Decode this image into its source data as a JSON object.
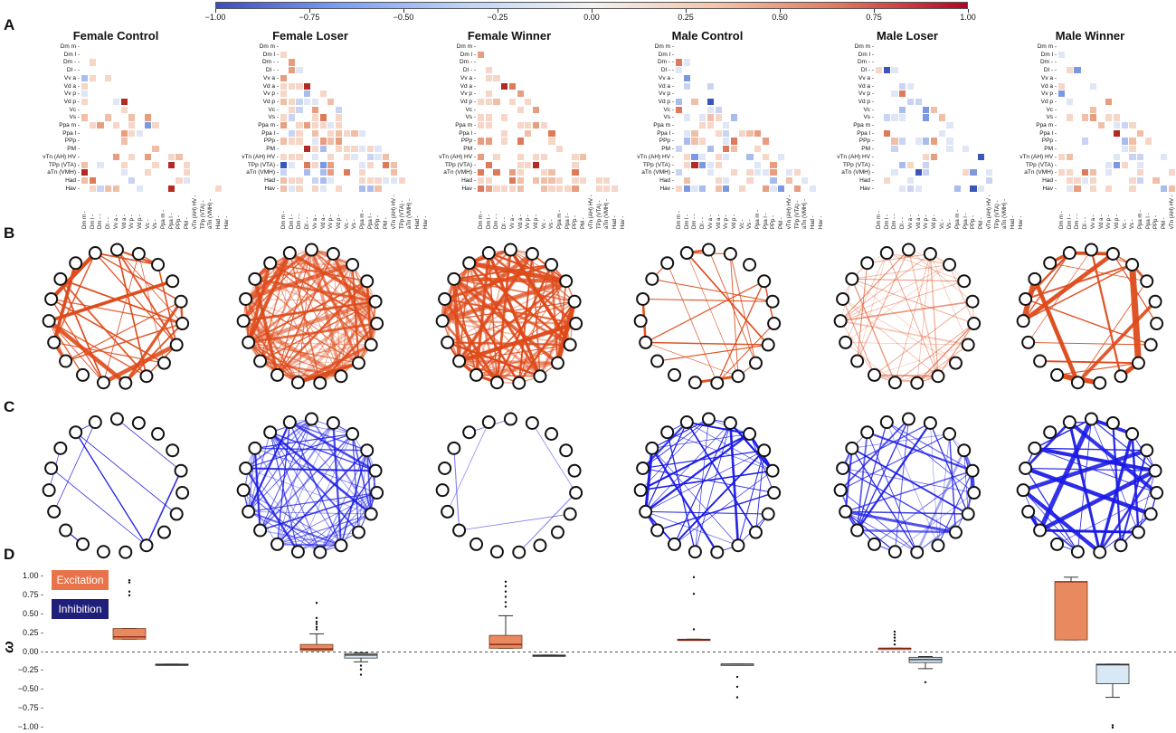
{
  "panel_letters": {
    "a": "A",
    "b": "B",
    "c": "C",
    "d": "D"
  },
  "colorbar": {
    "ticks": [
      "−1.00",
      "−0.75",
      "−0.50",
      "−0.25",
      "0.00",
      "0.25",
      "0.50",
      "0.75",
      "1.00"
    ],
    "colors": [
      "#3b4cc0",
      "#7b9ff9",
      "#c0d4f5",
      "#f2f2f2",
      "#f4c4a8",
      "#e0755c",
      "#b40426"
    ]
  },
  "groups": [
    {
      "name": "Female Control"
    },
    {
      "name": "Female Loser"
    },
    {
      "name": "Female Winner"
    },
    {
      "name": "Male Control"
    },
    {
      "name": "Male Loser"
    },
    {
      "name": "Male Winner"
    }
  ],
  "regions": [
    "Dm  m",
    "Dm  l",
    "Dm -",
    "Dl -",
    "Vv a",
    "Vd a",
    "Vv p",
    "Vd p",
    "Vc",
    "Vs",
    "Ppa m",
    "Ppa l",
    "PPp",
    "PM",
    "vTn (AH) HV",
    "TPp (VTA)",
    "aTn (VMH)",
    "Had",
    "Hav"
  ],
  "col_regions": [
    "Dm  m",
    "Dm  l",
    "Dm -",
    "Dl -",
    "Vv a",
    "Vd a",
    "Vv p",
    "Vd p",
    "Vc",
    "Vs",
    "Ppa m",
    "Ppa l",
    "PPp",
    "PM",
    "vTn (AH) HV",
    "TPp (VTA)",
    "aTn (VMH)",
    "Had",
    "Hav"
  ],
  "legend": {
    "excitation": "Excitation",
    "inhibition": "Inhibition",
    "exc_color": "#e8734a",
    "inh_color": "#1f1f7a"
  },
  "network_colors": {
    "excitation": "#de4a1a",
    "inhibition": "#1a1ae6"
  },
  "chart_data": {
    "type": "box",
    "title": "",
    "ylabel": "ω",
    "ylim": [
      -1.0,
      1.0
    ],
    "yticks": [
      "1.00",
      "0.75",
      "0.50",
      "0.25",
      "0.00",
      "−0.25",
      "−0.50",
      "−0.75",
      "−1.00"
    ],
    "series": [
      {
        "name": "Excitation",
        "values": [
          {
            "group": "Female Control",
            "min": 0.17,
            "q1": 0.17,
            "median": 0.2,
            "q3": 0.31,
            "max": 0.31,
            "outliers": [
              0.75,
              0.8,
              0.92,
              0.95
            ]
          },
          {
            "group": "Female Loser",
            "min": 0.02,
            "q1": 0.02,
            "median": 0.04,
            "q3": 0.1,
            "max": 0.24,
            "outliers": [
              0.3,
              0.33,
              0.37,
              0.4,
              0.45,
              0.65
            ]
          },
          {
            "group": "Female Winner",
            "min": 0.05,
            "q1": 0.05,
            "median": 0.1,
            "q3": 0.22,
            "max": 0.48,
            "outliers": [
              0.6,
              0.66,
              0.73,
              0.8,
              0.87,
              0.93
            ]
          },
          {
            "group": "Male Control",
            "min": 0.16,
            "q1": 0.16,
            "median": 0.16,
            "q3": 0.17,
            "max": 0.17,
            "outliers": [
              0.3,
              0.77,
              0.99
            ]
          },
          {
            "group": "Male Loser",
            "min": 0.04,
            "q1": 0.04,
            "median": 0.05,
            "q3": 0.05,
            "max": 0.05,
            "outliers": [
              0.1,
              0.15,
              0.19,
              0.23,
              0.27
            ]
          },
          {
            "group": "Male Winner",
            "min": 0.16,
            "q1": 0.16,
            "median": 0.93,
            "q3": 0.93,
            "max": 0.99,
            "outliers": []
          }
        ]
      },
      {
        "name": "Inhibition",
        "values": [
          {
            "group": "Female Control",
            "min": -0.17,
            "q1": -0.17,
            "median": -0.17,
            "q3": -0.16,
            "max": -0.16,
            "outliers": []
          },
          {
            "group": "Female Loser",
            "min": -0.13,
            "q1": -0.08,
            "median": -0.04,
            "q3": -0.02,
            "max": -0.01,
            "outliers": [
              -0.18,
              -0.23,
              -0.3
            ]
          },
          {
            "group": "Female Winner",
            "min": -0.05,
            "q1": -0.05,
            "median": -0.05,
            "q3": -0.04,
            "max": -0.04,
            "outliers": []
          },
          {
            "group": "Male Control",
            "min": -0.17,
            "q1": -0.17,
            "median": -0.16,
            "q3": -0.16,
            "max": -0.16,
            "outliers": [
              -0.33,
              -0.46,
              -0.6
            ]
          },
          {
            "group": "Male Loser",
            "min": -0.22,
            "q1": -0.14,
            "median": -0.1,
            "q3": -0.07,
            "max": -0.06,
            "outliers": [
              -0.4
            ]
          },
          {
            "group": "Male Winner",
            "min": -0.6,
            "q1": -0.42,
            "median": -0.17,
            "q3": -0.16,
            "max": -0.16,
            "outliers": [
              -0.97,
              -1.0
            ]
          }
        ]
      }
    ]
  }
}
